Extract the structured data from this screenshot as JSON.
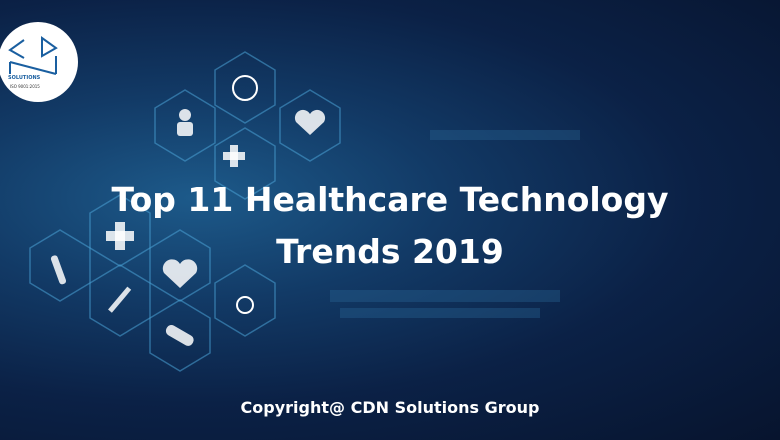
{
  "logo": {
    "brand": "CDN",
    "tagline": "SOLUTIONS",
    "certification": "ISO 9001:2015"
  },
  "title": {
    "line1": "Top 11 Healthcare Technology",
    "line2": "Trends 2019"
  },
  "footer": {
    "copyright": "Copyright@ CDN Solutions Group"
  },
  "colors": {
    "background": "#0b2146",
    "accent": "#1d5a8a",
    "text": "#ffffff"
  }
}
